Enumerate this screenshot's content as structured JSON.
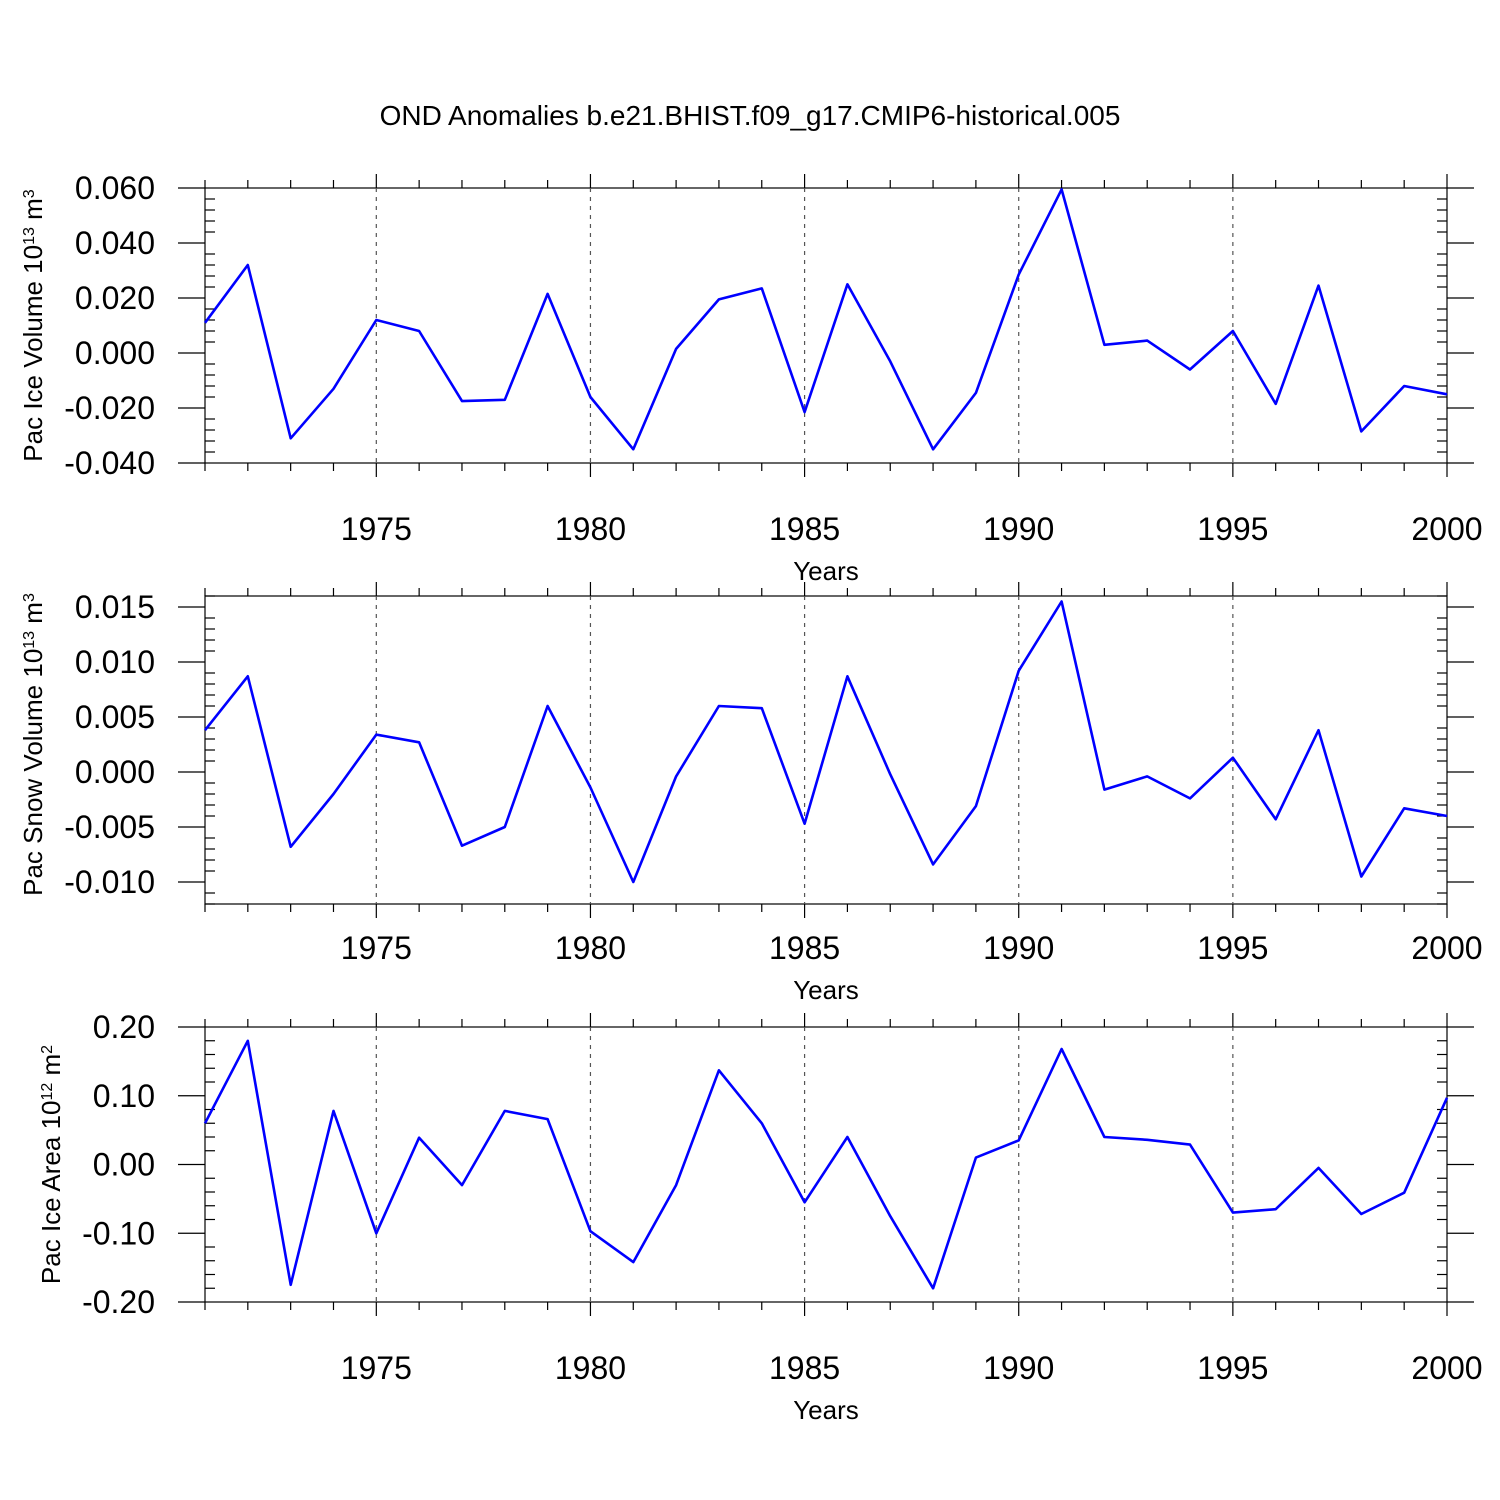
{
  "title": "OND Anomalies b.e21.BHIST.f09_g17.CMIP6-historical.005",
  "colors": {
    "series": "#0000ff",
    "axes": "#000000",
    "grid": "#555555"
  },
  "chart_data": [
    {
      "type": "line",
      "ylabel_main": "Pac Ice Volume 10",
      "ylabel_exp": "13",
      "ylabel_unit": " m",
      "ylabel_unit_exp": "3",
      "xlabel": "Years",
      "xlim": [
        1971,
        2000
      ],
      "ylim": [
        -0.04,
        0.06
      ],
      "xticks": [
        1975,
        1980,
        1985,
        1990,
        1995,
        2000
      ],
      "xtick_labels": [
        "1975",
        "1980",
        "1985",
        "1990",
        "1995",
        "2000"
      ],
      "yticks": [
        0.06,
        0.04,
        0.02,
        0.0,
        -0.02,
        -0.04
      ],
      "ytick_labels": [
        "0.060",
        "0.040",
        "0.020",
        "0.000",
        "-0.020",
        "-0.040"
      ],
      "grid": "vertical dashed at labeled years",
      "x": [
        1971,
        1972,
        1973,
        1974,
        1975,
        1976,
        1977,
        1978,
        1979,
        1980,
        1981,
        1982,
        1983,
        1984,
        1985,
        1986,
        1987,
        1988,
        1989,
        1990,
        1991,
        1992,
        1993,
        1994,
        1995,
        1996,
        1997,
        1998,
        1999,
        2000
      ],
      "values": [
        0.011,
        0.032,
        -0.031,
        -0.013,
        0.012,
        0.008,
        -0.0175,
        -0.017,
        0.0215,
        -0.016,
        -0.035,
        0.0015,
        0.0195,
        0.0235,
        -0.0215,
        0.025,
        -0.003,
        -0.035,
        -0.0145,
        0.0285,
        0.0595,
        0.003,
        0.0045,
        -0.006,
        0.008,
        -0.0185,
        0.0245,
        -0.0285,
        -0.012,
        -0.015
      ]
    },
    {
      "type": "line",
      "ylabel_main": "Pac Snow Volume 10",
      "ylabel_exp": "13",
      "ylabel_unit": " m",
      "ylabel_unit_exp": "3",
      "xlabel": "Years",
      "xlim": [
        1971,
        2000
      ],
      "ylim": [
        -0.012,
        0.016
      ],
      "xticks": [
        1975,
        1980,
        1985,
        1990,
        1995,
        2000
      ],
      "xtick_labels": [
        "1975",
        "1980",
        "1985",
        "1990",
        "1995",
        "2000"
      ],
      "yticks": [
        0.015,
        0.01,
        0.005,
        0.0,
        -0.005,
        -0.01
      ],
      "ytick_labels": [
        "0.015",
        "0.010",
        "0.005",
        "0.000",
        "-0.005",
        "-0.010"
      ],
      "grid": "vertical dashed at labeled years",
      "x": [
        1971,
        1972,
        1973,
        1974,
        1975,
        1976,
        1977,
        1978,
        1979,
        1980,
        1981,
        1982,
        1983,
        1984,
        1985,
        1986,
        1987,
        1988,
        1989,
        1990,
        1991,
        1992,
        1993,
        1994,
        1995,
        1996,
        1997,
        1998,
        1999,
        2000
      ],
      "values": [
        0.0038,
        0.0087,
        -0.0068,
        -0.002,
        0.0034,
        0.0027,
        -0.0067,
        -0.005,
        0.006,
        -0.0014,
        -0.01,
        -0.0004,
        0.006,
        0.0058,
        -0.0047,
        0.0087,
        -0.0002,
        -0.0084,
        -0.0031,
        0.0092,
        0.0155,
        -0.0016,
        -0.0004,
        -0.0024,
        0.0013,
        -0.0043,
        0.0038,
        -0.0095,
        -0.0033,
        -0.004
      ]
    },
    {
      "type": "line",
      "ylabel_main": "Pac Ice Area 10",
      "ylabel_exp": "12",
      "ylabel_unit": " m",
      "ylabel_unit_exp": "2",
      "xlabel": "Years",
      "xlim": [
        1971,
        2000
      ],
      "ylim": [
        -0.2,
        0.2
      ],
      "xticks": [
        1975,
        1980,
        1985,
        1990,
        1995,
        2000
      ],
      "xtick_labels": [
        "1975",
        "1980",
        "1985",
        "1990",
        "1995",
        "2000"
      ],
      "yticks": [
        0.2,
        0.1,
        0.0,
        -0.1,
        -0.2
      ],
      "ytick_labels": [
        "0.20",
        "0.10",
        "0.00",
        "-0.10",
        "-0.20"
      ],
      "grid": "vertical dashed at labeled years",
      "x": [
        1971,
        1972,
        1973,
        1974,
        1975,
        1976,
        1977,
        1978,
        1979,
        1980,
        1981,
        1982,
        1983,
        1984,
        1985,
        1986,
        1987,
        1988,
        1989,
        1990,
        1991,
        1992,
        1993,
        1994,
        1995,
        1996,
        1997,
        1998,
        1999,
        2000
      ],
      "values": [
        0.06,
        0.18,
        -0.175,
        0.078,
        -0.1,
        0.039,
        -0.03,
        0.078,
        0.066,
        -0.097,
        -0.142,
        -0.03,
        0.137,
        0.06,
        -0.055,
        0.04,
        -0.075,
        -0.18,
        0.01,
        0.035,
        0.168,
        0.04,
        0.036,
        0.029,
        -0.07,
        -0.065,
        -0.005,
        -0.072,
        -0.041,
        0.097
      ]
    }
  ]
}
